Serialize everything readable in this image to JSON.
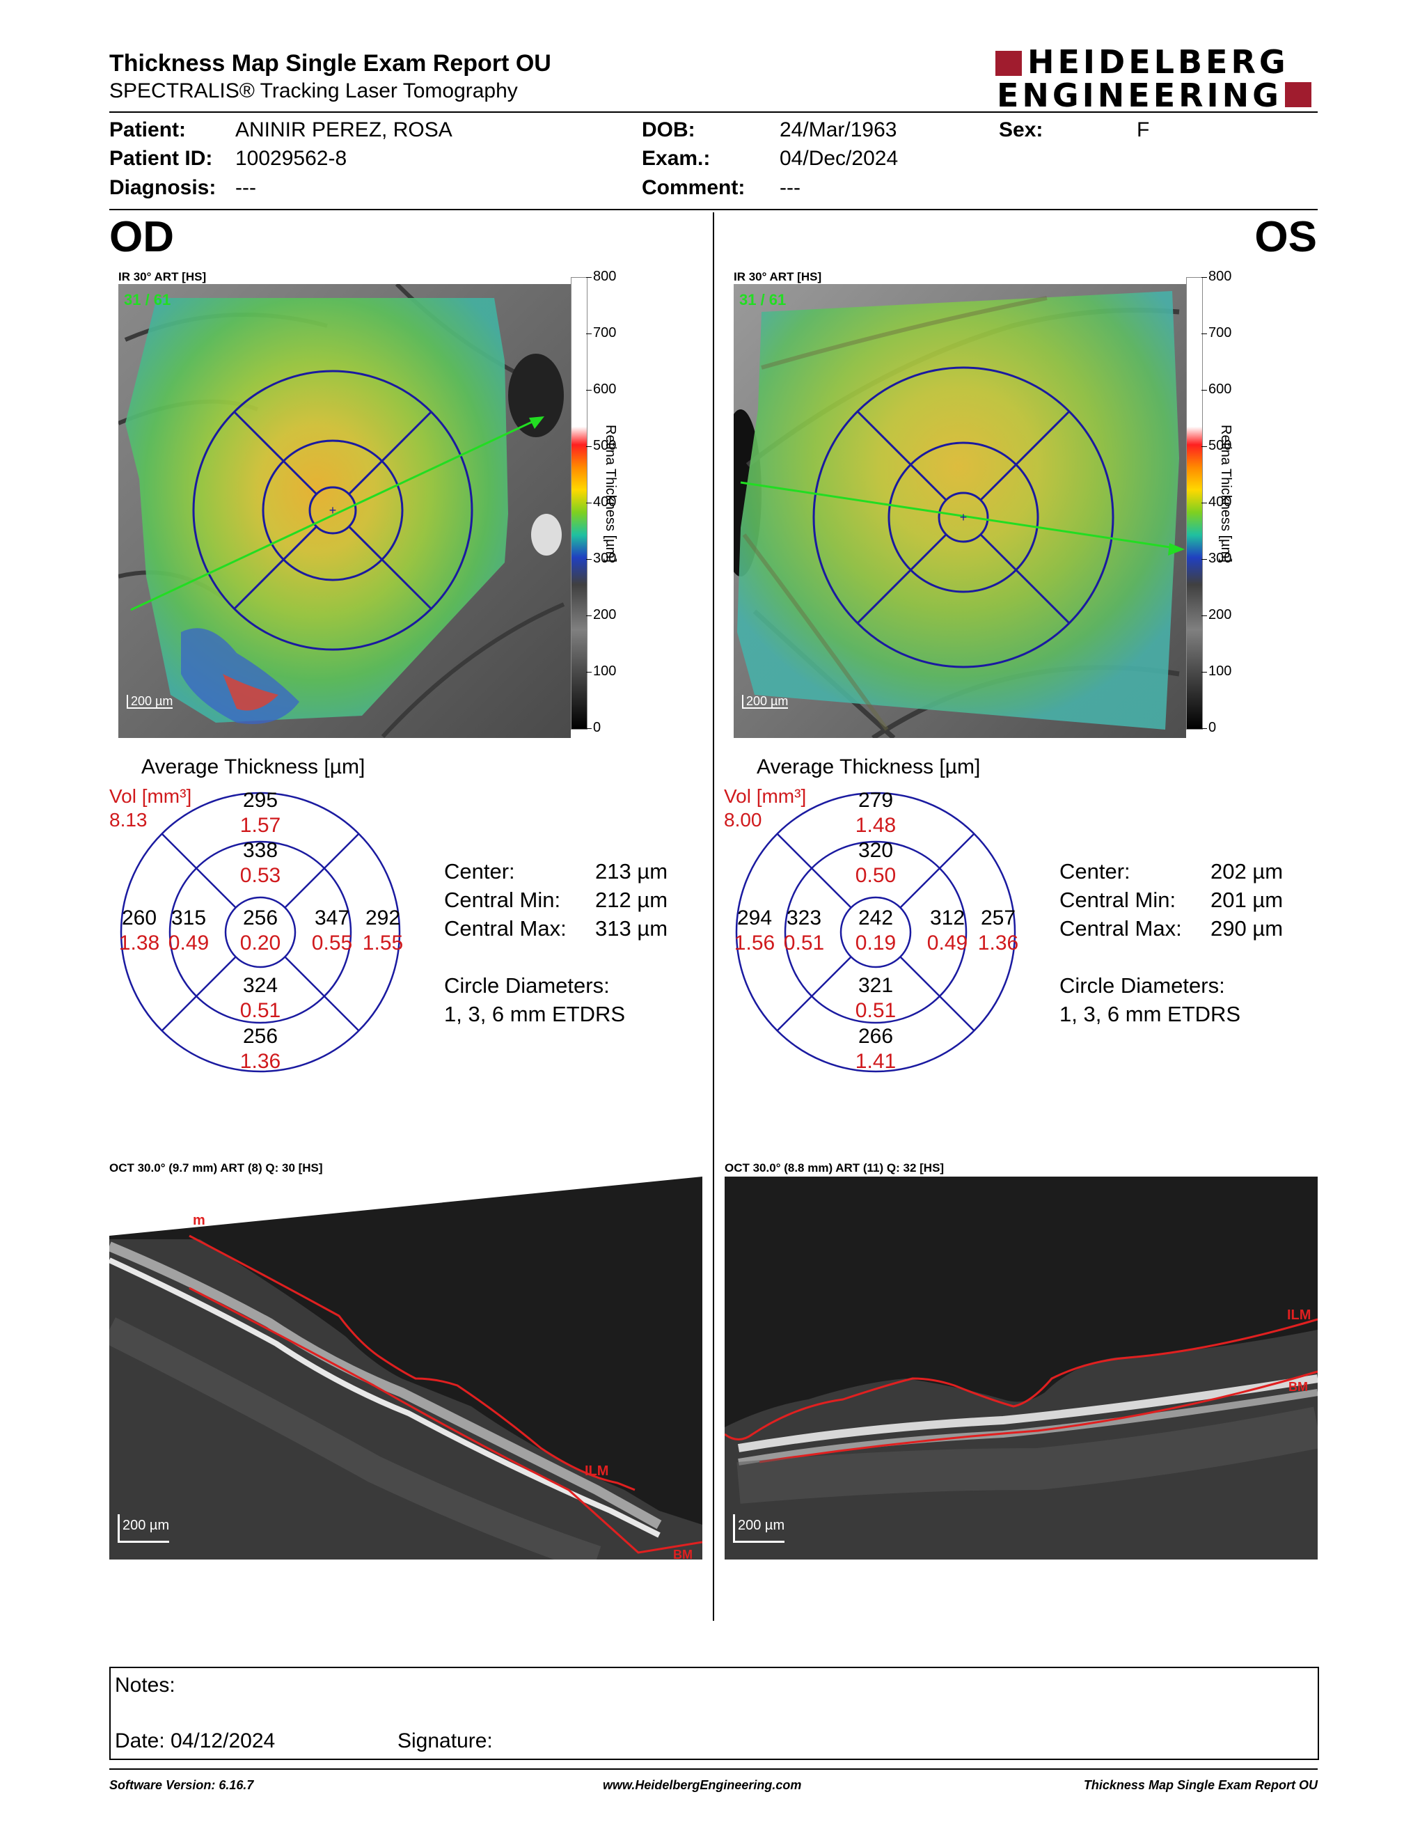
{
  "header": {
    "title": "Thickness Map Single Exam Report OU",
    "subtitle": "SPECTRALIS® Tracking Laser Tomography",
    "logo_line1": "HEIDELBERG",
    "logo_line2": "ENGINEERING"
  },
  "patient": {
    "patient_label": "Patient:",
    "patient_value": "ANINIR PEREZ, ROSA",
    "id_label": "Patient ID:",
    "id_value": "10029562-8",
    "diag_label": "Diagnosis:",
    "diag_value": "---",
    "dob_label": "DOB:",
    "dob_value": "24/Mar/1963",
    "exam_label": "Exam.:",
    "exam_value": "04/Dec/2024",
    "comment_label": "Comment:",
    "comment_value": "---",
    "sex_label": "Sex:",
    "sex_value": "F"
  },
  "od": {
    "eye": "OD",
    "ir_label": "IR 30° ART [HS]",
    "frame_label": "31 / 61",
    "scale_label": "200 µm",
    "avg_title": "Average Thickness [µm]",
    "vol_label": "Vol [mm³]",
    "vol_value": "8.13",
    "grid": {
      "center": {
        "t": "256",
        "v": "0.20"
      },
      "inner_sup": {
        "t": "338",
        "v": "0.53"
      },
      "inner_inf": {
        "t": "324",
        "v": "0.51"
      },
      "inner_left": {
        "t": "315",
        "v": "0.49"
      },
      "inner_right": {
        "t": "347",
        "v": "0.55"
      },
      "outer_sup": {
        "t": "295",
        "v": "1.57"
      },
      "outer_inf": {
        "t": "256",
        "v": "1.36"
      },
      "outer_left": {
        "t": "260",
        "v": "1.38"
      },
      "outer_right": {
        "t": "292",
        "v": "1.55"
      }
    },
    "stats": {
      "center_label": "Center:",
      "center_value": "213 µm",
      "min_label": "Central Min:",
      "min_value": "212 µm",
      "max_label": "Central Max:",
      "max_value": "313 µm",
      "diam_label": "Circle Diameters:",
      "diam_value": "1, 3, 6 mm ETDRS"
    },
    "oct_label": "OCT 30.0° (9.7 mm) ART (8) Q: 30 [HS]",
    "oct_scale": "200 µm",
    "oct_markers": [
      "m",
      "ILM",
      "BM"
    ]
  },
  "os": {
    "eye": "OS",
    "ir_label": "IR 30° ART [HS]",
    "frame_label": "31 / 61",
    "scale_label": "200 µm",
    "avg_title": "Average Thickness [µm]",
    "vol_label": "Vol [mm³]",
    "vol_value": "8.00",
    "grid": {
      "center": {
        "t": "242",
        "v": "0.19"
      },
      "inner_sup": {
        "t": "320",
        "v": "0.50"
      },
      "inner_inf": {
        "t": "321",
        "v": "0.51"
      },
      "inner_left": {
        "t": "323",
        "v": "0.51"
      },
      "inner_right": {
        "t": "312",
        "v": "0.49"
      },
      "outer_sup": {
        "t": "279",
        "v": "1.48"
      },
      "outer_inf": {
        "t": "266",
        "v": "1.41"
      },
      "outer_left": {
        "t": "294",
        "v": "1.56"
      },
      "outer_right": {
        "t": "257",
        "v": "1.36"
      }
    },
    "stats": {
      "center_label": "Center:",
      "center_value": "202 µm",
      "min_label": "Central Min:",
      "min_value": "201 µm",
      "max_label": "Central Max:",
      "max_value": "290 µm",
      "diam_label": "Circle Diameters:",
      "diam_value": "1, 3, 6 mm ETDRS"
    },
    "oct_label": "OCT 30.0° (8.8 mm) ART (11) Q: 32 [HS]",
    "oct_scale": "200 µm",
    "oct_markers": [
      "ILM",
      "BM"
    ]
  },
  "colorbar": {
    "ticks": [
      "800",
      "700",
      "600",
      "500",
      "400",
      "300",
      "200",
      "100",
      "0"
    ],
    "title": "Retina Thickness [µm]"
  },
  "notes": {
    "notes_label": "Notes:",
    "date_label": "Date: 04/12/2024",
    "signature_label": "Signature:"
  },
  "footer": {
    "software": "Software Version: 6.16.7",
    "website": "www.HeidelbergEngineering.com",
    "report": "Thickness Map Single Exam Report OU"
  },
  "colors": {
    "accent_red": "#a01c2e",
    "value_red": "#d0191c",
    "grid_blue": "#1a1aa0",
    "line_green": "#22dd22"
  }
}
